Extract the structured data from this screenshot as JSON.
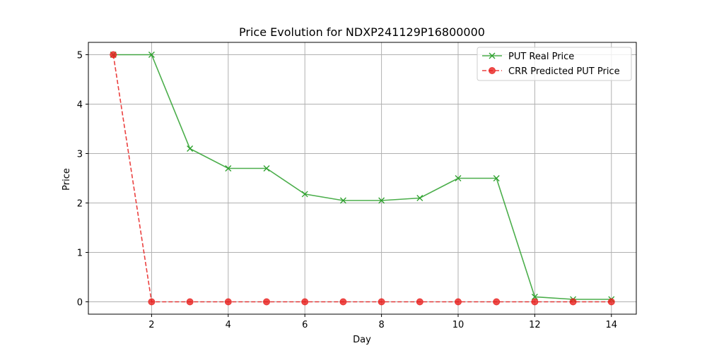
{
  "chart_data": {
    "type": "line",
    "title": "Price Evolution for NDXP241129P16800000",
    "xlabel": "Day",
    "ylabel": "Price",
    "xlim": [
      0.35,
      14.65
    ],
    "ylim": [
      -0.25,
      5.25
    ],
    "xticks": [
      2,
      4,
      6,
      8,
      10,
      12,
      14
    ],
    "yticks": [
      0,
      1,
      2,
      3,
      4,
      5
    ],
    "grid": true,
    "legend_position": "top-right",
    "x": [
      1,
      2,
      3,
      4,
      5,
      6,
      7,
      8,
      9,
      10,
      11,
      12,
      13,
      14
    ],
    "series": [
      {
        "name": "PUT Real Price",
        "color": "#2ca02c",
        "marker": "x",
        "linestyle": "solid",
        "values": [
          5.0,
          5.0,
          3.1,
          2.7,
          2.7,
          2.18,
          2.05,
          2.05,
          2.1,
          2.5,
          2.5,
          0.1,
          0.05,
          0.05
        ]
      },
      {
        "name": "CRR Predicted PUT Price",
        "color": "#e8201e",
        "marker": "o",
        "linestyle": "dashed",
        "values": [
          5.0,
          0.0,
          0.0,
          0.0,
          0.0,
          0.0,
          0.0,
          0.0,
          0.0,
          0.0,
          0.0,
          0.0,
          0.0,
          0.0
        ]
      }
    ]
  }
}
